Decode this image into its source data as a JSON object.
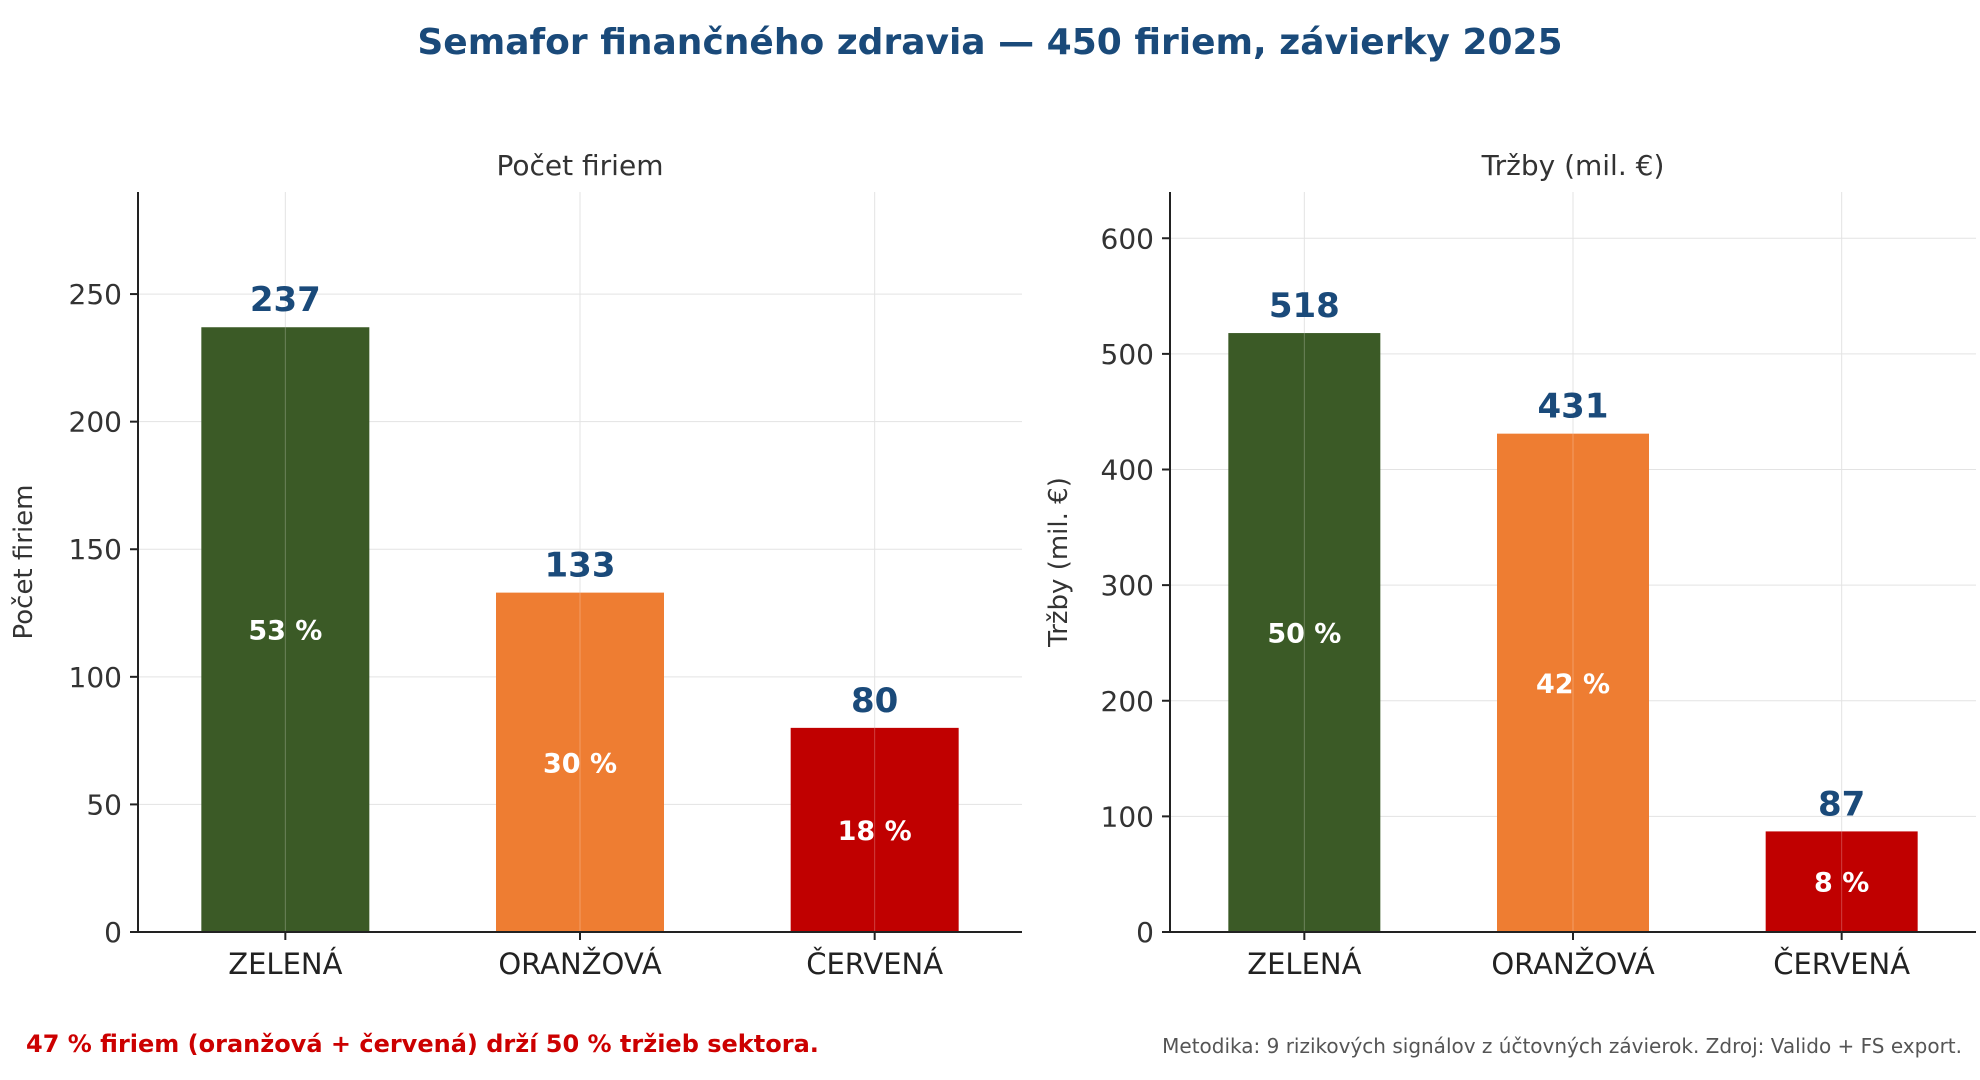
{
  "title": "Semafor finančného zdravia — 450 firiem, závierky 2025",
  "footnote_left": "47 % firiem (oranžová + červená) drží 50 % tržieb sektora.",
  "footnote_right": "Metodika: 9 rizikových signálov z účtovných závierok. Zdroj: Valido + FS export.",
  "colors": {
    "green": "#3b5a26",
    "orange": "#ee7d32",
    "red": "#c00000",
    "value_label": "#1a4a7a",
    "inner_label": "#ffffff"
  },
  "chart_data": [
    {
      "type": "bar",
      "title": "Počet firiem",
      "ylabel": "Počet firiem",
      "xlabel": "",
      "categories": [
        "ZELENÁ",
        "ORANŽOVÁ",
        "ČERVENÁ"
      ],
      "values": [
        237,
        133,
        80
      ],
      "value_labels": [
        "237",
        "133",
        "80"
      ],
      "share_labels": [
        "53 %",
        "30 %",
        "18 %"
      ],
      "bar_colors": [
        "#3b5a26",
        "#ee7d32",
        "#c00000"
      ],
      "ylim": [
        0,
        290
      ],
      "yticks": [
        0,
        50,
        100,
        150,
        200,
        250
      ],
      "grid": true
    },
    {
      "type": "bar",
      "title": "Tržby (mil. €)",
      "ylabel": "Tržby (mil. €)",
      "xlabel": "",
      "categories": [
        "ZELENÁ",
        "ORANŽOVÁ",
        "ČERVENÁ"
      ],
      "values": [
        518,
        431,
        87
      ],
      "value_labels": [
        "518",
        "431",
        "87"
      ],
      "share_labels": [
        "50 %",
        "42 %",
        "8 %"
      ],
      "bar_colors": [
        "#3b5a26",
        "#ee7d32",
        "#c00000"
      ],
      "ylim": [
        0,
        640
      ],
      "yticks": [
        0,
        100,
        200,
        300,
        400,
        500,
        600
      ],
      "grid": true
    }
  ]
}
